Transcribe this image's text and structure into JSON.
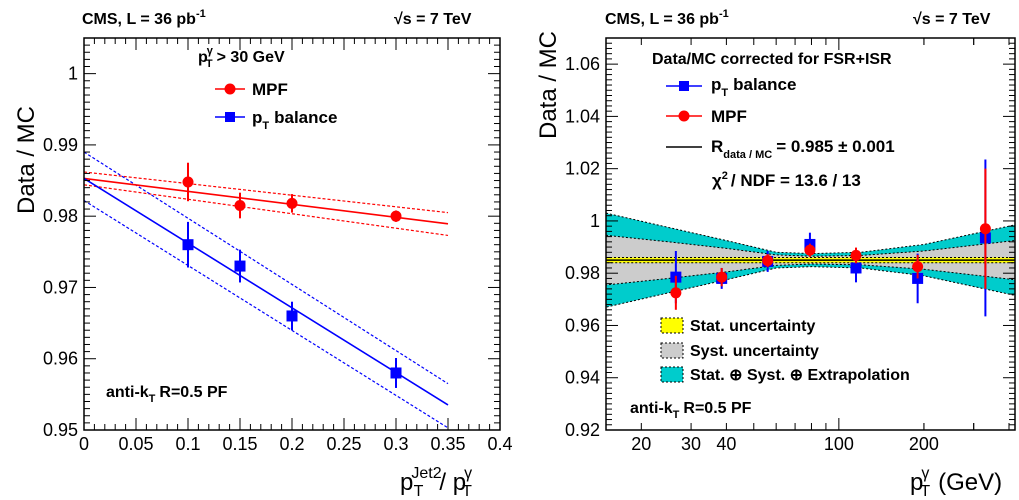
{
  "chart_data": [
    {
      "type": "scatter",
      "header_left": "CMS, L = 36 pb",
      "header_left_sup": "-1",
      "header_right_sqrt": "√",
      "header_right": "s = 7 TeV",
      "ylabel": "Data / MC",
      "xlabel_p": "p",
      "xlabel_sub": "T",
      "xlabel_sup": "Jet2",
      "xlabel_slash": "/ p",
      "xlabel_sub2": "T",
      "xlabel_sup2": "γ",
      "xlim": [
        0,
        0.4
      ],
      "ylim": [
        0.95,
        1.005
      ],
      "xticks": [
        "0",
        "0.05",
        "0.1",
        "0.15",
        "0.2",
        "0.25",
        "0.3",
        "0.35",
        "0.4"
      ],
      "yticks": [
        "0.95",
        "0.96",
        "0.97",
        "0.98",
        "0.99",
        "1"
      ],
      "cut_p": "p",
      "cut_sub": "T",
      "cut_sup": "γ",
      "cut_text": "> 30 GeV",
      "legend": [
        {
          "label": "MPF",
          "color": "#ff0000",
          "marker": "circle"
        },
        {
          "label_p": "p",
          "label_sub": "T",
          "label_rest": "balance",
          "color": "#0000ff",
          "marker": "square"
        }
      ],
      "algo": "anti-k",
      "algo_sub": "T",
      "algo_rest": "R=0.5 PF",
      "series": [
        {
          "name": "MPF",
          "color": "#ff0000",
          "marker": "circle",
          "x": [
            0.1,
            0.15,
            0.2,
            0.3
          ],
          "y": [
            0.9848,
            0.9815,
            0.9818,
            0.98
          ],
          "err": [
            0.0027,
            0.0018,
            0.0013,
            0.0008
          ],
          "fit": {
            "intercept": 0.9853,
            "slope": -0.0182
          },
          "band_upper": [
            0.9862,
            0.9805
          ],
          "band_lower": [
            0.9844,
            0.9773
          ]
        },
        {
          "name": "pT balance",
          "color": "#0000ff",
          "marker": "square",
          "x": [
            0.1,
            0.15,
            0.2,
            0.3
          ],
          "y": [
            0.976,
            0.973,
            0.966,
            0.958
          ],
          "err": [
            0.0032,
            0.0023,
            0.002,
            0.0021
          ],
          "fit": {
            "intercept": 0.9853,
            "slope": -0.0908
          },
          "band_upper": [
            0.989,
            0.9565
          ],
          "band_lower": [
            0.9822,
            0.9503
          ]
        }
      ]
    },
    {
      "type": "scatter",
      "header_left": "CMS, L = 36 pb",
      "header_left_sup": "-1",
      "header_right_sqrt": "√",
      "header_right": "s = 7 TeV",
      "ylabel": "Data / MC",
      "xlabel_p": "p",
      "xlabel_sub": "T",
      "xlabel_sup": "γ",
      "xlabel_unit": "(GeV)",
      "xscale": "log",
      "xlim": [
        15,
        420
      ],
      "ylim": [
        0.92,
        1.07
      ],
      "xticks": [
        20,
        30,
        40,
        100,
        200
      ],
      "xtick_labels": [
        "20",
        "30",
        "40",
        "100",
        "200"
      ],
      "yticks": [
        "0.92",
        "0.94",
        "0.96",
        "0.98",
        "1",
        "1.02",
        "1.04",
        "1.06"
      ],
      "legend_title": "Data/MC corrected for FSR+ISR",
      "legend": [
        {
          "label_p": "p",
          "label_sub": "T",
          "label_rest": "balance",
          "color": "#0000ff",
          "marker": "square"
        },
        {
          "label": "MPF",
          "color": "#ff0000",
          "marker": "circle"
        },
        {
          "label_r": "R",
          "label_sub": "data / MC",
          "label_rest": "= 0.985 ± 0.001",
          "marker": "line"
        }
      ],
      "chi2": "χ",
      "chi2_sup": "2",
      "chi2_rest": "/ NDF = 13.6 / 13",
      "uncert_legend": [
        {
          "label": "Stat. uncertainty",
          "color": "#ffff00"
        },
        {
          "label": "Syst. uncertainty",
          "color": "#cccccc"
        },
        {
          "label": "Stat. ⊕ Syst. ⊕ Extrapolation",
          "color": "#00cccc"
        }
      ],
      "algo": "anti-k",
      "algo_sub": "T",
      "algo_rest": "R=0.5 PF",
      "fit_value": 0.985,
      "stat_band": [
        0.984,
        0.986
      ],
      "syst_band": {
        "x": [
          15,
          25,
          40,
          60,
          80,
          120,
          200,
          420
        ],
        "half": [
          0.0095,
          0.007,
          0.0045,
          0.002,
          0.0015,
          0.0018,
          0.0035,
          0.0075
        ]
      },
      "ext_band": {
        "x": [
          15,
          25,
          40,
          60,
          80,
          120,
          200,
          420
        ],
        "half": [
          0.018,
          0.0125,
          0.0075,
          0.003,
          0.0025,
          0.003,
          0.006,
          0.0135
        ]
      },
      "series": [
        {
          "name": "pT balance",
          "color": "#0000ff",
          "marker": "square",
          "x": [
            26.5,
            38.5,
            56,
            79,
            115,
            190,
            330
          ],
          "y": [
            0.9785,
            0.978,
            0.9845,
            0.991,
            0.982,
            0.978,
            0.9935
          ],
          "err": [
            0.01,
            0.004,
            0.004,
            0.0045,
            0.0055,
            0.0095,
            0.03
          ]
        },
        {
          "name": "MPF",
          "color": "#ff0000",
          "marker": "circle",
          "x": [
            26.5,
            38.5,
            56,
            79,
            115,
            190,
            330
          ],
          "y": [
            0.9725,
            0.9785,
            0.9848,
            0.9888,
            0.9868,
            0.9825,
            0.997
          ],
          "err": [
            0.0065,
            0.0035,
            0.0025,
            0.0025,
            0.003,
            0.0045,
            0.023
          ]
        }
      ]
    }
  ]
}
